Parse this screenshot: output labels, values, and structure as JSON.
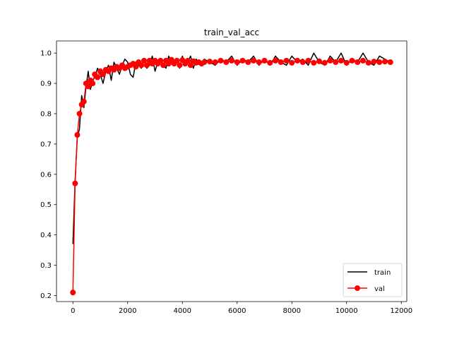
{
  "chart_data": {
    "type": "line",
    "title": "train_val_acc",
    "xlabel": "",
    "ylabel": "",
    "xlim": [
      -600,
      12200
    ],
    "ylim": [
      0.18,
      1.04
    ],
    "xticks": [
      0,
      2000,
      4000,
      6000,
      8000,
      10000,
      12000
    ],
    "xtick_labels": [
      "0",
      "2000",
      "4000",
      "6000",
      "8000",
      "10000",
      "12000"
    ],
    "yticks": [
      0.2,
      0.3,
      0.4,
      0.5,
      0.6,
      0.7,
      0.8,
      0.9,
      1.0
    ],
    "ytick_labels": [
      "0.2",
      "0.3",
      "0.4",
      "0.5",
      "0.6",
      "0.7",
      "0.8",
      "0.9",
      "1.0"
    ],
    "grid": false,
    "legend_position": "lower-right",
    "series": [
      {
        "name": "train",
        "color": "#000000",
        "marker": "none",
        "x": [
          0,
          80,
          160,
          240,
          320,
          400,
          480,
          560,
          640,
          720,
          800,
          900,
          1000,
          1100,
          1200,
          1300,
          1400,
          1500,
          1600,
          1700,
          1800,
          1900,
          2000,
          2100,
          2200,
          2300,
          2400,
          2500,
          2600,
          2700,
          2800,
          2900,
          3000,
          3100,
          3200,
          3300,
          3400,
          3500,
          3600,
          3700,
          3800,
          3900,
          4000,
          4100,
          4200,
          4300,
          4400,
          4500,
          4600,
          4700,
          4800,
          5000,
          5200,
          5400,
          5600,
          5800,
          6000,
          6200,
          6400,
          6600,
          6800,
          7000,
          7200,
          7400,
          7600,
          7800,
          8000,
          8200,
          8400,
          8600,
          8800,
          9000,
          9200,
          9400,
          9600,
          9800,
          10000,
          10200,
          10400,
          10600,
          10800,
          11000,
          11200,
          11400,
          11600
        ],
        "values": [
          0.37,
          0.58,
          0.72,
          0.75,
          0.86,
          0.82,
          0.89,
          0.94,
          0.88,
          0.91,
          0.92,
          0.95,
          0.93,
          0.9,
          0.94,
          0.96,
          0.91,
          0.97,
          0.95,
          0.93,
          0.96,
          0.98,
          0.97,
          0.93,
          0.92,
          0.97,
          0.96,
          0.95,
          0.98,
          0.95,
          0.96,
          0.99,
          0.94,
          0.97,
          0.98,
          0.96,
          0.95,
          0.99,
          0.97,
          0.96,
          0.98,
          0.95,
          0.99,
          0.96,
          0.97,
          0.99,
          0.95,
          0.98,
          0.97,
          0.96,
          0.98,
          0.97,
          0.96,
          0.98,
          0.97,
          0.99,
          0.96,
          0.98,
          0.97,
          0.99,
          0.96,
          0.98,
          0.96,
          0.99,
          0.97,
          0.96,
          0.99,
          0.97,
          0.98,
          0.96,
          1.0,
          0.97,
          0.96,
          0.99,
          0.97,
          1.0,
          0.96,
          0.98,
          0.97,
          1.0,
          0.97,
          0.96,
          0.99,
          0.98,
          0.97
        ]
      },
      {
        "name": "val",
        "color": "#ff0000",
        "marker": "circle",
        "x": [
          0,
          80,
          160,
          240,
          320,
          400,
          480,
          560,
          640,
          720,
          800,
          900,
          1000,
          1100,
          1200,
          1300,
          1400,
          1500,
          1600,
          1700,
          1800,
          1900,
          2000,
          2100,
          2200,
          2300,
          2400,
          2500,
          2600,
          2700,
          2800,
          2900,
          3000,
          3100,
          3200,
          3300,
          3400,
          3500,
          3600,
          3700,
          3800,
          3900,
          4000,
          4100,
          4200,
          4300,
          4400,
          4500,
          4600,
          4700,
          4800,
          5000,
          5200,
          5400,
          5600,
          5800,
          6000,
          6200,
          6400,
          6600,
          6800,
          7000,
          7200,
          7400,
          7600,
          7800,
          8000,
          8200,
          8400,
          8600,
          8800,
          9000,
          9200,
          9400,
          9600,
          9800,
          10000,
          10200,
          10400,
          10600,
          10800,
          11000,
          11200,
          11400,
          11600
        ],
        "values": [
          0.21,
          0.57,
          0.73,
          0.8,
          0.83,
          0.84,
          0.9,
          0.89,
          0.91,
          0.9,
          0.93,
          0.92,
          0.94,
          0.93,
          0.945,
          0.94,
          0.95,
          0.945,
          0.955,
          0.95,
          0.96,
          0.95,
          0.955,
          0.96,
          0.965,
          0.955,
          0.97,
          0.96,
          0.975,
          0.96,
          0.975,
          0.965,
          0.975,
          0.965,
          0.975,
          0.96,
          0.975,
          0.965,
          0.978,
          0.965,
          0.975,
          0.96,
          0.977,
          0.965,
          0.975,
          0.96,
          0.973,
          0.968,
          0.97,
          0.965,
          0.97,
          0.972,
          0.97,
          0.975,
          0.97,
          0.975,
          0.97,
          0.975,
          0.97,
          0.975,
          0.97,
          0.975,
          0.968,
          0.975,
          0.97,
          0.975,
          0.968,
          0.975,
          0.97,
          0.975,
          0.968,
          0.973,
          0.968,
          0.975,
          0.97,
          0.975,
          0.968,
          0.975,
          0.97,
          0.975,
          0.968,
          0.972,
          0.97,
          0.972,
          0.97
        ]
      }
    ]
  }
}
